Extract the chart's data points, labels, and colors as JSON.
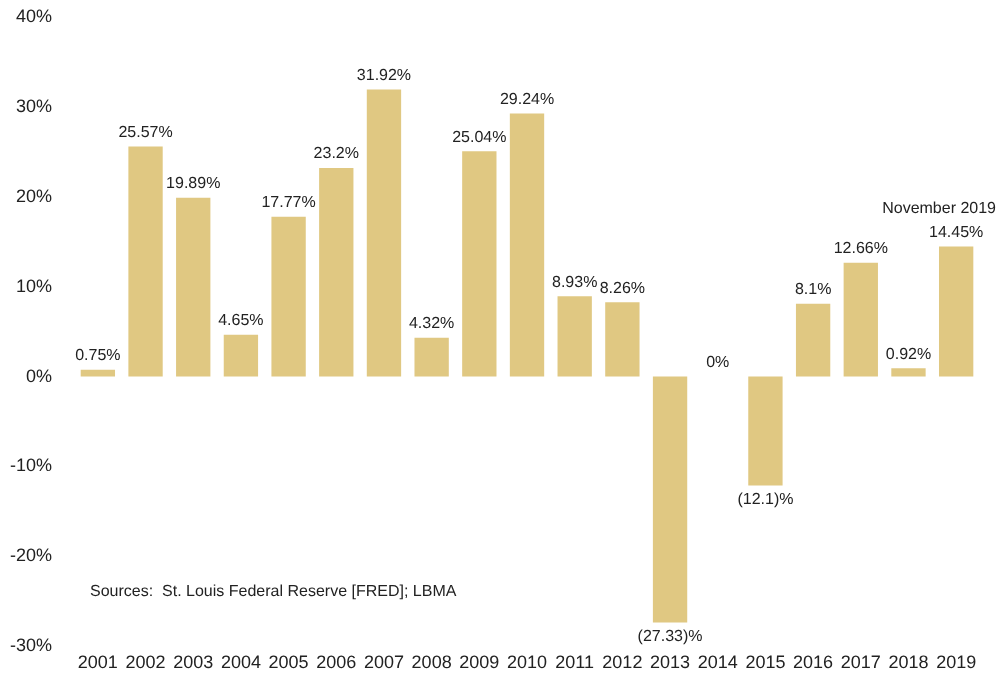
{
  "chart_data": {
    "type": "bar",
    "categories": [
      "2001",
      "2002",
      "2003",
      "2004",
      "2005",
      "2006",
      "2007",
      "2008",
      "2009",
      "2010",
      "2011",
      "2012",
      "2013",
      "2014",
      "2015",
      "2016",
      "2017",
      "2018",
      "2019"
    ],
    "values": [
      0.75,
      25.57,
      19.89,
      4.65,
      17.77,
      23.2,
      31.92,
      4.32,
      25.04,
      29.24,
      8.93,
      8.26,
      -27.33,
      0,
      -12.1,
      8.1,
      12.66,
      0.92,
      14.45
    ],
    "value_labels": [
      "0.75%",
      "25.57%",
      "19.89%",
      "4.65%",
      "17.77%",
      "23.2%",
      "31.92%",
      "4.32%",
      "25.04%",
      "29.24%",
      "8.93%",
      "8.26%",
      "(27.33)%",
      "0%",
      "(12.1)%",
      "8.1%",
      "12.66%",
      "0.92%",
      "14.45%"
    ],
    "color": "#e0c882",
    "ylim": [
      -30,
      40
    ],
    "yticks": [
      {
        "value": -30,
        "label": "-30%"
      },
      {
        "value": -20,
        "label": "-20%"
      },
      {
        "value": -10,
        "label": "-10%"
      },
      {
        "value": 0,
        "label": "0%"
      },
      {
        "value": 10,
        "label": "10%"
      },
      {
        "value": 20,
        "label": "20%"
      },
      {
        "value": 30,
        "label": "30%"
      },
      {
        "value": 40,
        "label": "40%"
      }
    ],
    "grid": false,
    "legend": false,
    "annotations": [
      {
        "text": "November 2019",
        "x": "2019",
        "y": 14.45
      },
      "Sources:  St. Louis Federal Reserve [FRED]; LBMA"
    ]
  }
}
